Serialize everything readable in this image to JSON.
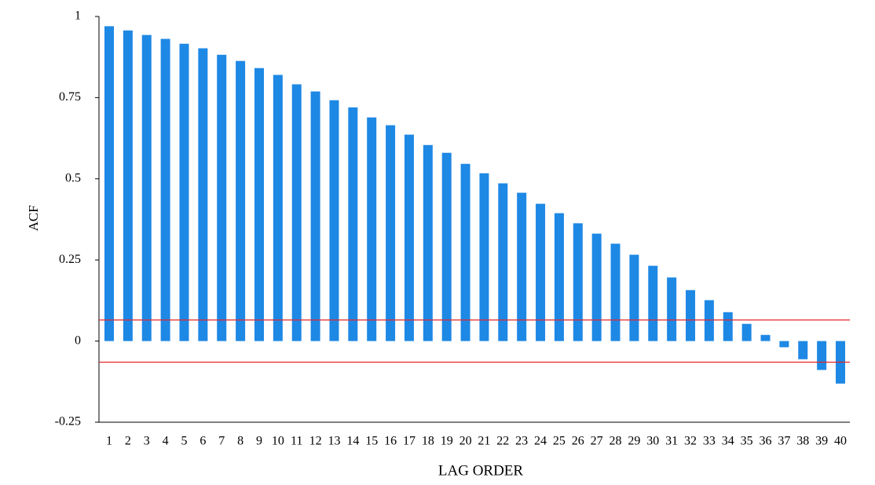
{
  "chart_data": {
    "type": "bar",
    "x_label": "LAG ORDER",
    "y_label": "ACF",
    "categories": [
      "1",
      "2",
      "3",
      "4",
      "5",
      "6",
      "7",
      "8",
      "9",
      "10",
      "11",
      "12",
      "13",
      "14",
      "15",
      "16",
      "17",
      "18",
      "19",
      "20",
      "21",
      "22",
      "23",
      "24",
      "25",
      "26",
      "27",
      "28",
      "29",
      "30",
      "31",
      "32",
      "33",
      "34",
      "35",
      "36",
      "37",
      "38",
      "39",
      "40"
    ],
    "values": [
      0.97,
      0.957,
      0.943,
      0.931,
      0.916,
      0.902,
      0.882,
      0.863,
      0.841,
      0.82,
      0.791,
      0.769,
      0.742,
      0.72,
      0.689,
      0.665,
      0.636,
      0.604,
      0.58,
      0.546,
      0.517,
      0.486,
      0.457,
      0.423,
      0.394,
      0.363,
      0.331,
      0.3,
      0.266,
      0.232,
      0.196,
      0.157,
      0.126,
      0.089,
      0.053,
      0.019,
      -0.019,
      -0.056,
      -0.089,
      -0.131
    ],
    "color": "#1e88e5",
    "ylim": [
      -0.25,
      1
    ],
    "yticks": [
      -0.25,
      0,
      0.25,
      0.5,
      0.75,
      1
    ],
    "reference_lines": [
      {
        "value": 0.065,
        "color": "#e3262b"
      },
      {
        "value": -0.065,
        "color": "#e3262b"
      }
    ],
    "grid": false
  }
}
